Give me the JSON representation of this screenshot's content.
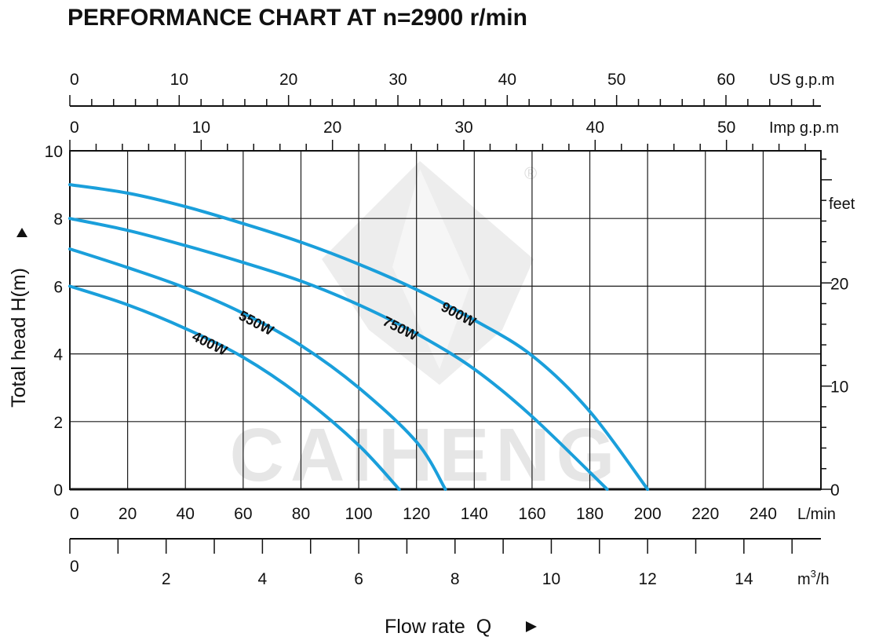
{
  "page": {
    "title": "PERFORMANCE CHART AT n=2900 r/min",
    "watermark": "CAIHENG",
    "watermark_mark": "®"
  },
  "colors": {
    "curve": "#1a9fdb",
    "grid": "#1a1a1a",
    "text": "#111111",
    "watermark": "#e6e6e6"
  },
  "chart_data": {
    "type": "line",
    "title": "PERFORMANCE CHART AT n=2900 r/min",
    "xlabel": "Flow rate  Q",
    "ylabel": "Total  head H(m)",
    "grid": true,
    "x_unit": "L/min",
    "y_unit": "m",
    "xlim": [
      0,
      260
    ],
    "ylim": [
      0,
      10
    ],
    "x_ticks": [
      0,
      20,
      40,
      60,
      80,
      100,
      120,
      140,
      160,
      180,
      200,
      220,
      240
    ],
    "y_ticks": [
      0,
      2,
      4,
      6,
      8,
      10
    ],
    "secondary_axes": {
      "us_gpm": {
        "unit": "US g.p.m",
        "ticks": [
          0,
          10,
          20,
          30,
          40,
          50,
          60
        ]
      },
      "imp_gpm": {
        "unit": "Imp g.p.m",
        "ticks": [
          0,
          10,
          20,
          30,
          40,
          50
        ]
      },
      "m3h": {
        "unit": "m³/h",
        "unit_base": "m",
        "unit_sup": "3",
        "unit_tail": "/h",
        "ticks": [
          0,
          2,
          4,
          6,
          8,
          10,
          12,
          14
        ]
      },
      "feet": {
        "unit": "feet",
        "ticks": [
          0,
          10,
          20
        ]
      }
    },
    "series": [
      {
        "name": "400W",
        "label_at": 46,
        "x": [
          0,
          20,
          40,
          60,
          80,
          100,
          114
        ],
        "y": [
          6.0,
          5.45,
          4.75,
          3.9,
          2.75,
          1.3,
          0.0
        ]
      },
      {
        "name": "550W",
        "label_at": 62,
        "x": [
          0,
          20,
          40,
          60,
          80,
          100,
          120,
          130
        ],
        "y": [
          7.1,
          6.55,
          5.95,
          5.2,
          4.25,
          3.0,
          1.4,
          0.0
        ]
      },
      {
        "name": "750W",
        "label_at": 112,
        "x": [
          0,
          20,
          40,
          60,
          80,
          100,
          120,
          140,
          160,
          186
        ],
        "y": [
          8.0,
          7.65,
          7.2,
          6.7,
          6.15,
          5.45,
          4.6,
          3.55,
          2.15,
          0.0
        ]
      },
      {
        "name": "900W",
        "label_at": 132,
        "x": [
          0,
          20,
          40,
          60,
          80,
          100,
          120,
          140,
          160,
          180,
          200
        ],
        "y": [
          9.0,
          8.75,
          8.35,
          7.85,
          7.3,
          6.65,
          5.9,
          5.0,
          3.95,
          2.3,
          0.0
        ]
      }
    ]
  }
}
